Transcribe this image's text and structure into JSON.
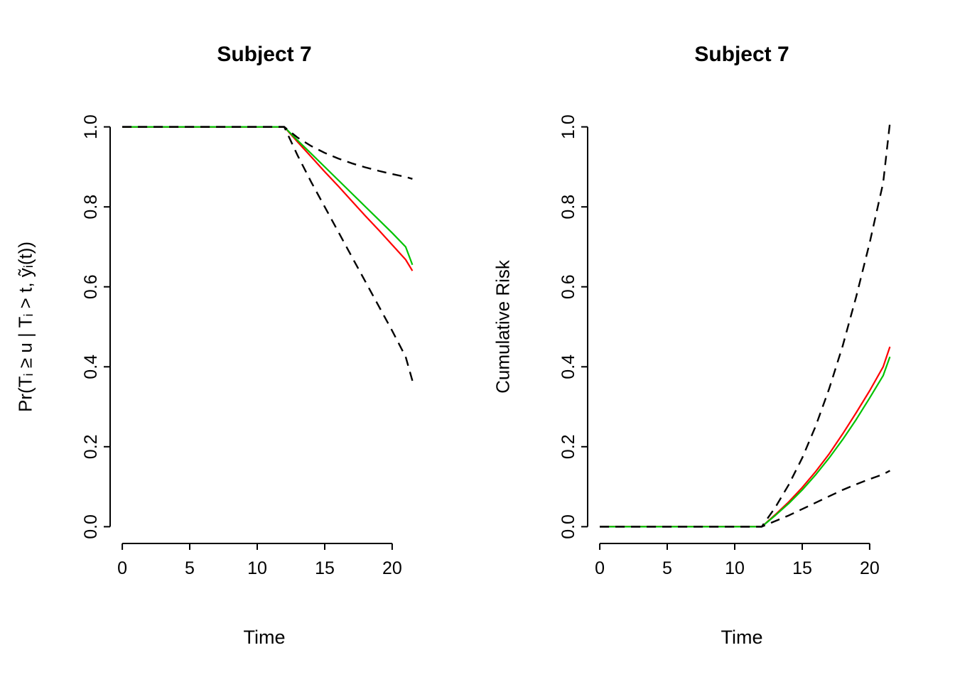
{
  "figure": {
    "background": "#ffffff",
    "text_color": "#000000",
    "accent_colors": {
      "estimate_red": "#ff0000",
      "estimate_green": "#00c300",
      "ci_black": "#000000"
    }
  },
  "chart_data": [
    {
      "type": "line",
      "title": "Subject 7",
      "xlabel": "Time",
      "ylabel": "Pr(Tᵢ ≥ u | Tᵢ > t, ỹᵢ(t))",
      "xlim": [
        -0.9,
        21.9
      ],
      "ylim": [
        -0.042,
        1.042
      ],
      "xticks": [
        0,
        5,
        10,
        15,
        20
      ],
      "xtick_labels": [
        "0",
        "5",
        "10",
        "15",
        "20"
      ],
      "yticks": [
        0.0,
        0.2,
        0.4,
        0.6,
        0.8,
        1.0
      ],
      "ytick_labels": [
        "0.0",
        "0.2",
        "0.4",
        "0.6",
        "0.8",
        "1.0"
      ],
      "grid": false,
      "legend": null,
      "x": [
        0,
        12,
        13,
        14,
        15,
        16,
        17,
        18,
        19,
        20,
        21,
        21.5
      ],
      "series": [
        {
          "name": "survival-estimate-red",
          "color": "#ff0000",
          "width": 2.2,
          "dashed": false,
          "y": [
            1,
            1,
            0.962,
            0.925,
            0.888,
            0.852,
            0.815,
            0.778,
            0.742,
            0.705,
            0.668,
            0.64
          ]
        },
        {
          "name": "survival-estimate-green",
          "color": "#00c300",
          "width": 2.2,
          "dashed": false,
          "y": [
            1,
            1,
            0.966,
            0.933,
            0.9,
            0.867,
            0.834,
            0.801,
            0.768,
            0.735,
            0.7,
            0.655
          ]
        },
        {
          "name": "ci-upper-dashed",
          "color": "#000000",
          "width": 2.4,
          "dashed": true,
          "y": [
            1,
            1,
            0.973,
            0.952,
            0.935,
            0.921,
            0.909,
            0.899,
            0.89,
            0.882,
            0.875,
            0.87
          ]
        },
        {
          "name": "ci-lower-dashed",
          "color": "#000000",
          "width": 2.4,
          "dashed": true,
          "y": [
            1,
            1,
            0.928,
            0.862,
            0.8,
            0.738,
            0.676,
            0.614,
            0.552,
            0.49,
            0.425,
            0.365
          ]
        }
      ]
    },
    {
      "type": "line",
      "title": "Subject 7",
      "xlabel": "Time",
      "ylabel": "Cumulative Risk",
      "xlim": [
        -0.9,
        21.9
      ],
      "ylim": [
        -0.042,
        1.042
      ],
      "xticks": [
        0,
        5,
        10,
        15,
        20
      ],
      "xtick_labels": [
        "0",
        "5",
        "10",
        "15",
        "20"
      ],
      "yticks": [
        0.0,
        0.2,
        0.4,
        0.6,
        0.8,
        1.0
      ],
      "ytick_labels": [
        "0.0",
        "0.2",
        "0.4",
        "0.6",
        "0.8",
        "1.0"
      ],
      "grid": false,
      "legend": null,
      "x": [
        0,
        12,
        13,
        14,
        15,
        16,
        17,
        18,
        19,
        20,
        21,
        21.5
      ],
      "series": [
        {
          "name": "risk-estimate-red",
          "color": "#ff0000",
          "width": 2.2,
          "dashed": false,
          "y": [
            0,
            0,
            0.03,
            0.062,
            0.098,
            0.138,
            0.182,
            0.232,
            0.285,
            0.34,
            0.4,
            0.45
          ]
        },
        {
          "name": "risk-estimate-green",
          "color": "#00c300",
          "width": 2.2,
          "dashed": false,
          "y": [
            0,
            0,
            0.028,
            0.058,
            0.092,
            0.13,
            0.172,
            0.218,
            0.268,
            0.322,
            0.378,
            0.425
          ]
        },
        {
          "name": "ci-upper-dashed",
          "color": "#000000",
          "width": 2.4,
          "dashed": true,
          "y": [
            0,
            0,
            0.048,
            0.105,
            0.172,
            0.252,
            0.345,
            0.452,
            0.575,
            0.71,
            0.86,
            1.01
          ]
        },
        {
          "name": "ci-lower-dashed",
          "color": "#000000",
          "width": 2.4,
          "dashed": true,
          "y": [
            0,
            0,
            0.014,
            0.028,
            0.044,
            0.06,
            0.076,
            0.092,
            0.106,
            0.119,
            0.131,
            0.14
          ]
        }
      ]
    }
  ]
}
